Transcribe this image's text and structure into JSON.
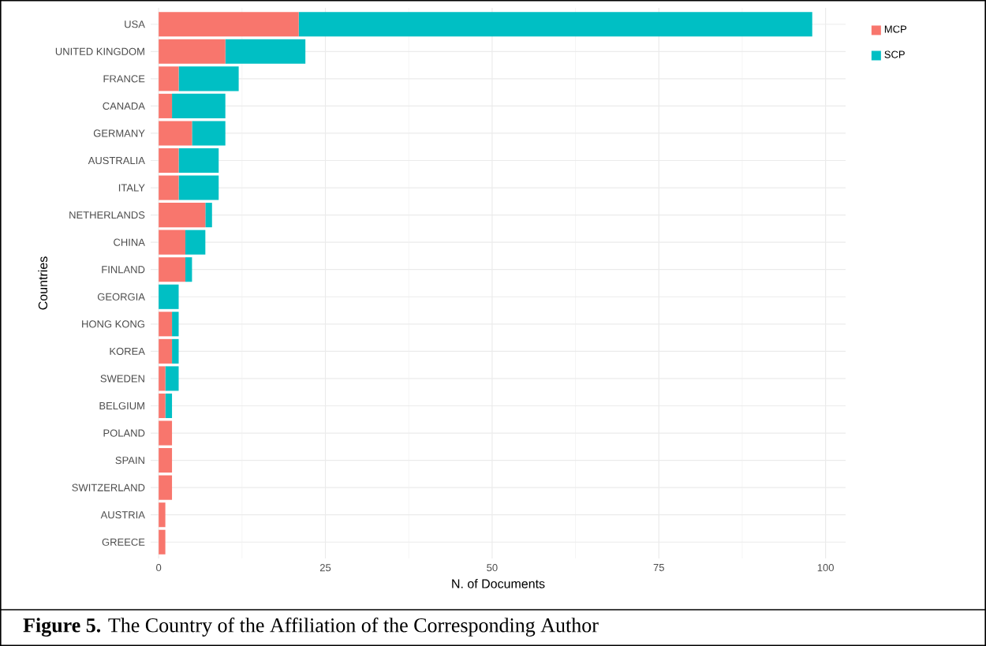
{
  "chart_data": {
    "type": "bar",
    "orientation": "horizontal",
    "stacked": true,
    "xlabel": "N. of Documents",
    "ylabel": "Countries",
    "categories": [
      "USA",
      "UNITED KINGDOM",
      "FRANCE",
      "CANADA",
      "GERMANY",
      "AUSTRALIA",
      "ITALY",
      "NETHERLANDS",
      "CHINA",
      "FINLAND",
      "GEORGIA",
      "HONG KONG",
      "KOREA",
      "SWEDEN",
      "BELGIUM",
      "POLAND",
      "SPAIN",
      "SWITZERLAND",
      "AUSTRIA",
      "GREECE"
    ],
    "series": [
      {
        "name": "MCP",
        "color": "#f8766d",
        "values": [
          21,
          10,
          3,
          2,
          5,
          3,
          3,
          7,
          4,
          4,
          0,
          2,
          2,
          1,
          1,
          2,
          2,
          2,
          1,
          1
        ]
      },
      {
        "name": "SCP",
        "color": "#00bfc4",
        "values": [
          77,
          12,
          9,
          8,
          5,
          6,
          6,
          1,
          3,
          1,
          3,
          1,
          1,
          2,
          1,
          0,
          0,
          0,
          0,
          0
        ]
      }
    ],
    "xlim": [
      -1.2,
      103
    ],
    "xticks": [
      0,
      25,
      50,
      75,
      100
    ],
    "grid": true,
    "legend": "top right",
    "annotations": [
      "**Figure 5.** The Country of the Affiliation of the Corresponding Author"
    ]
  }
}
